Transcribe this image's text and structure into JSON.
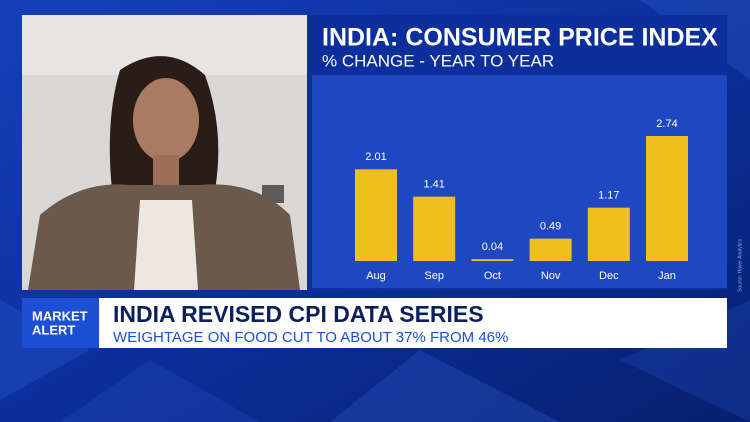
{
  "chart_data": {
    "type": "bar",
    "title": "INDIA: CONSUMER PRICE INDEX",
    "subtitle": "% CHANGE - YEAR TO YEAR",
    "categories": [
      "Aug",
      "Sep",
      "Oct",
      "Nov",
      "Dec",
      "Jan"
    ],
    "values": [
      2.01,
      1.41,
      0.04,
      0.49,
      1.17,
      2.74
    ],
    "color": "#efbf1d",
    "source": "Source: Haver Analytics"
  },
  "lower_third": {
    "tag_lines": [
      "MARKET",
      "ALERT"
    ],
    "headline": "INDIA REVISED CPI DATA SERIES",
    "subline": "WEIGHTAGE ON FOOD CUT TO ABOUT 37% FROM 46%"
  }
}
